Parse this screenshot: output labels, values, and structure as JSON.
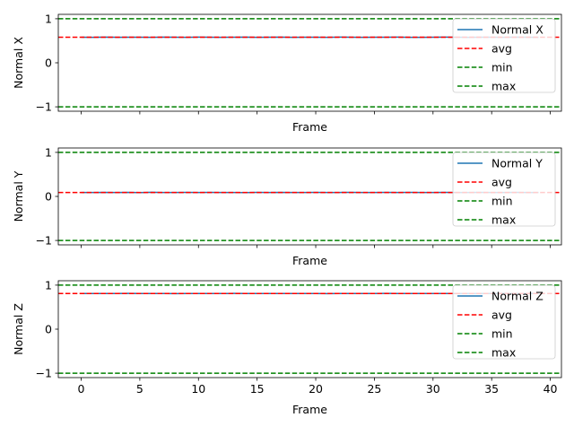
{
  "chart_data": [
    {
      "type": "line",
      "ylabel": "Normal X",
      "xlabel": "Frame",
      "xlim": [
        -1.95,
        40.95
      ],
      "ylim": [
        -1.1,
        1.1
      ],
      "yticks": [
        -1,
        0,
        1
      ],
      "ytick_labels": [
        "−1",
        "0",
        "1"
      ],
      "show_xtick_labels": false,
      "series": [
        {
          "name": "Normal X",
          "color": "#1f77b4",
          "x": [
            0,
            1,
            2,
            3,
            4,
            5,
            6,
            7,
            8,
            9,
            10,
            11,
            12,
            13,
            14,
            15,
            16,
            17,
            18,
            19,
            20,
            21,
            22,
            23,
            24,
            25,
            26,
            27,
            28,
            29,
            30,
            31,
            32,
            33,
            34,
            35,
            36,
            37,
            38,
            39
          ],
          "y": [
            0.58,
            0.578,
            0.582,
            0.579,
            0.581,
            0.58,
            0.577,
            0.583,
            0.58,
            0.579,
            0.582,
            0.58,
            0.578,
            0.581,
            0.583,
            0.579,
            0.58,
            0.582,
            0.578,
            0.58,
            0.581,
            0.579,
            0.583,
            0.58,
            0.578,
            0.581,
            0.58,
            0.582,
            0.579,
            0.577,
            0.58,
            0.582,
            0.58,
            0.579,
            0.581,
            0.58,
            0.578,
            0.582,
            0.58,
            0.579
          ]
        }
      ],
      "hlines": [
        {
          "name": "avg",
          "value": 0.58,
          "color": "#ff0000"
        },
        {
          "name": "min",
          "value": -1,
          "color": "#008000"
        },
        {
          "name": "max",
          "value": 1,
          "color": "#008000"
        }
      ],
      "legend": "upper-right"
    },
    {
      "type": "line",
      "ylabel": "Normal Y",
      "xlabel": "Frame",
      "xlim": [
        -1.95,
        40.95
      ],
      "ylim": [
        -1.1,
        1.1
      ],
      "yticks": [
        -1,
        0,
        1
      ],
      "ytick_labels": [
        "−1",
        "0",
        "1"
      ],
      "show_xtick_labels": false,
      "series": [
        {
          "name": "Normal Y",
          "color": "#1f77b4",
          "x": [
            0,
            1,
            2,
            3,
            4,
            5,
            6,
            7,
            8,
            9,
            10,
            11,
            12,
            13,
            14,
            15,
            16,
            17,
            18,
            19,
            20,
            21,
            22,
            23,
            24,
            25,
            26,
            27,
            28,
            29,
            30,
            31,
            32,
            33,
            34,
            35,
            36,
            37,
            38,
            39
          ],
          "y": [
            0.09,
            0.088,
            0.092,
            0.089,
            0.091,
            0.087,
            0.093,
            0.09,
            0.088,
            0.091,
            0.09,
            0.092,
            0.089,
            0.09,
            0.087,
            0.091,
            0.09,
            0.092,
            0.088,
            0.09,
            0.091,
            0.089,
            0.09,
            0.092,
            0.088,
            0.09,
            0.091,
            0.089,
            0.092,
            0.09,
            0.088,
            0.091,
            0.09,
            0.089,
            0.092,
            0.09,
            0.088,
            0.091,
            0.09,
            0.089
          ]
        }
      ],
      "hlines": [
        {
          "name": "avg",
          "value": 0.09,
          "color": "#ff0000"
        },
        {
          "name": "min",
          "value": -1,
          "color": "#008000"
        },
        {
          "name": "max",
          "value": 1,
          "color": "#008000"
        }
      ],
      "legend": "upper-right"
    },
    {
      "type": "line",
      "ylabel": "Normal Z",
      "xlabel": "Frame",
      "xlim": [
        -1.95,
        40.95
      ],
      "ylim": [
        -1.1,
        1.1
      ],
      "yticks": [
        -1,
        0,
        1
      ],
      "ytick_labels": [
        "−1",
        "0",
        "1"
      ],
      "xticks": [
        0,
        5,
        10,
        15,
        20,
        25,
        30,
        35,
        40
      ],
      "show_xtick_labels": true,
      "series": [
        {
          "name": "Normal Z",
          "color": "#1f77b4",
          "x": [
            0,
            1,
            2,
            3,
            4,
            5,
            6,
            7,
            8,
            9,
            10,
            11,
            12,
            13,
            14,
            15,
            16,
            17,
            18,
            19,
            20,
            21,
            22,
            23,
            24,
            25,
            26,
            27,
            28,
            29,
            30,
            31,
            32,
            33,
            34,
            35,
            36,
            37,
            38,
            39
          ],
          "y": [
            0.81,
            0.809,
            0.811,
            0.81,
            0.812,
            0.809,
            0.81,
            0.811,
            0.808,
            0.81,
            0.811,
            0.81,
            0.809,
            0.812,
            0.81,
            0.81,
            0.811,
            0.809,
            0.81,
            0.811,
            0.81,
            0.808,
            0.81,
            0.811,
            0.81,
            0.809,
            0.812,
            0.81,
            0.81,
            0.811,
            0.809,
            0.81,
            0.811,
            0.81,
            0.809,
            0.81,
            0.812,
            0.81,
            0.809,
            0.811
          ]
        }
      ],
      "hlines": [
        {
          "name": "avg",
          "value": 0.81,
          "color": "#ff0000"
        },
        {
          "name": "min",
          "value": -1,
          "color": "#008000"
        },
        {
          "name": "max",
          "value": 1,
          "color": "#008000"
        }
      ],
      "legend": "upper-right"
    }
  ]
}
